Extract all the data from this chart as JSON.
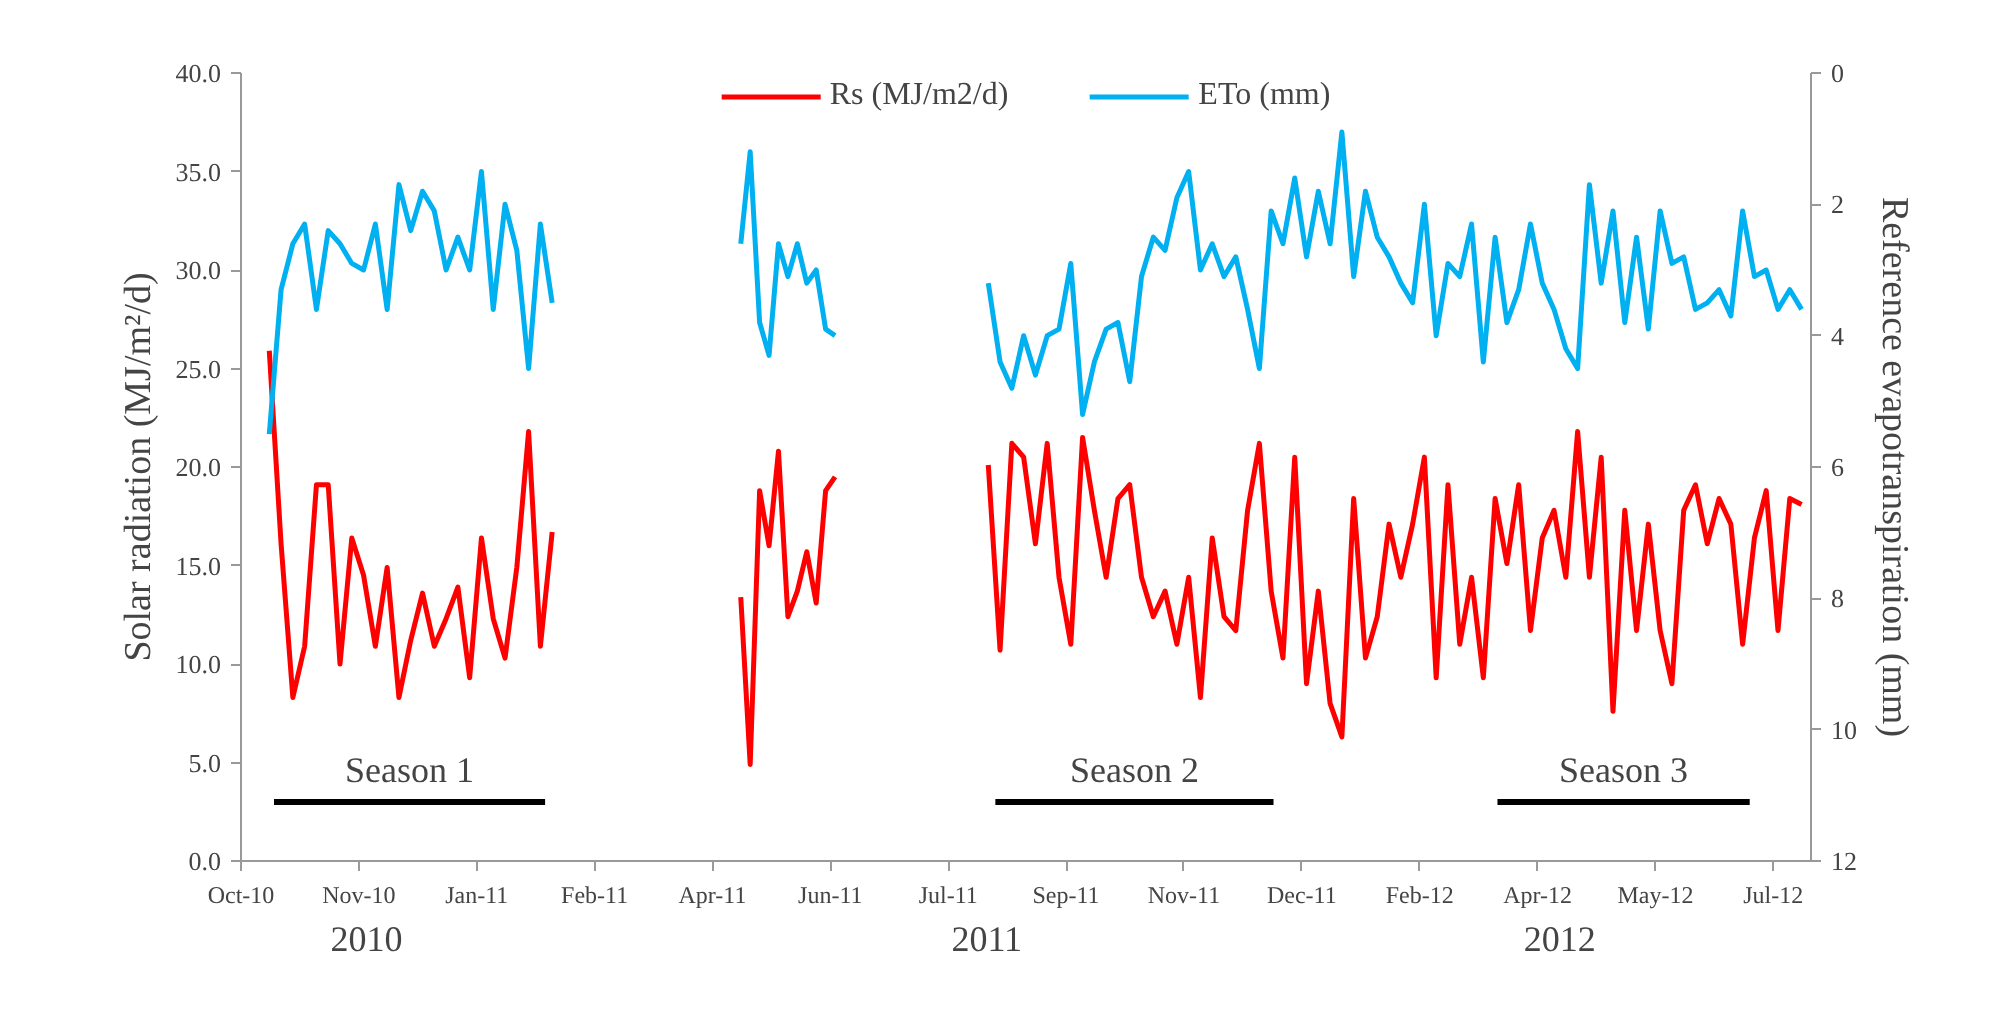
{
  "chart_data": {
    "type": "line",
    "ylabel": "Solar radiation (MJ/m²/d)",
    "y2label": "Reference evapotranspiration (mm)",
    "x": [
      "2010-10-13",
      "2010-10-18",
      "2010-10-23",
      "2010-10-28",
      "2010-11-02",
      "2010-11-07",
      "2010-11-12",
      "2010-11-17",
      "2010-11-22",
      "2010-11-27",
      "2010-12-02",
      "2010-12-07",
      "2010-12-12",
      "2010-12-17",
      "2010-12-22",
      "2010-12-27",
      "2011-01-01",
      "2011-01-06",
      "2011-01-11",
      "2011-01-16",
      "2011-01-21",
      "2011-01-26",
      "2011-01-31",
      "2011-02-05",
      "2011-02-10",
      "2011-03-15",
      "2011-05-01",
      "2011-05-05",
      "2011-05-09",
      "2011-05-13",
      "2011-05-17",
      "2011-05-21",
      "2011-05-25",
      "2011-05-29",
      "2011-06-02",
      "2011-06-06",
      "2011-06-10",
      "2011-07-01",
      "2011-08-14",
      "2011-08-19",
      "2011-08-24",
      "2011-08-29",
      "2011-09-03",
      "2011-09-08",
      "2011-09-13",
      "2011-09-18",
      "2011-09-23",
      "2011-09-28",
      "2011-10-03",
      "2011-10-08",
      "2011-10-13",
      "2011-10-18",
      "2011-10-23",
      "2011-10-28",
      "2011-11-02",
      "2011-11-07",
      "2011-11-12",
      "2011-11-17",
      "2011-11-22",
      "2011-11-27",
      "2011-12-02",
      "2011-12-07",
      "2011-12-12",
      "2011-12-17",
      "2011-12-22",
      "2011-12-27",
      "2012-01-01",
      "2012-01-06",
      "2012-01-11",
      "2012-01-16",
      "2012-01-21",
      "2012-01-26",
      "2012-01-31",
      "2012-02-05",
      "2012-02-10",
      "2012-02-15",
      "2012-02-20",
      "2012-02-25",
      "2012-03-01",
      "2012-03-06",
      "2012-03-11",
      "2012-03-16",
      "2012-03-21",
      "2012-03-26",
      "2012-03-31",
      "2012-04-05",
      "2012-04-10",
      "2012-04-15",
      "2012-04-20",
      "2012-04-25",
      "2012-04-30",
      "2012-05-05",
      "2012-05-10",
      "2012-05-15",
      "2012-05-20",
      "2012-05-25",
      "2012-05-30",
      "2012-06-04",
      "2012-06-09",
      "2012-06-14",
      "2012-06-19",
      "2012-06-24",
      "2012-06-29",
      "2012-07-04",
      "2012-07-09",
      "2012-07-14",
      "2012-07-19",
      "2012-07-24"
    ],
    "series": [
      {
        "name": "Rs (MJ/m2/d)",
        "color": "#ff0000",
        "values": [
          25.9,
          16.1,
          8.3,
          10.9,
          19.1,
          19.1,
          10.0,
          16.4,
          14.5,
          10.9,
          14.9,
          8.3,
          11.2,
          13.6,
          10.9,
          12.3,
          13.9,
          9.3,
          16.4,
          12.3,
          10.3,
          14.9,
          21.8,
          10.9,
          16.7,
          null,
          13.4,
          4.9,
          18.8,
          16.0,
          20.8,
          12.4,
          13.7,
          15.7,
          13.1,
          18.8,
          19.5,
          null,
          20.1,
          10.7,
          21.2,
          20.5,
          16.1,
          21.2,
          14.4,
          11.0,
          21.5,
          17.8,
          14.4,
          18.4,
          19.1,
          14.4,
          12.4,
          13.7,
          11.0,
          14.4,
          8.3,
          16.4,
          12.4,
          11.7,
          17.8,
          21.2,
          13.7,
          10.3,
          20.5,
          9.0,
          13.7,
          8.0,
          6.3,
          18.4,
          10.3,
          12.4,
          17.1,
          14.4,
          17.1,
          20.5,
          9.3,
          19.1,
          11.0,
          14.4,
          9.3,
          18.4,
          15.1,
          19.1,
          11.7,
          16.4,
          17.8,
          14.4,
          21.8,
          14.4,
          20.5,
          7.6,
          17.8,
          11.7,
          17.1,
          11.7,
          9.0,
          17.8,
          19.1,
          16.1,
          18.4,
          17.1,
          11.0,
          16.4,
          18.8,
          11.7,
          18.4,
          18.1
        ]
      },
      {
        "name": "ETo (mm)",
        "color": "#00b0f0",
        "axis": "y2",
        "values": [
          5.5,
          3.3,
          2.6,
          2.3,
          3.6,
          2.4,
          2.6,
          2.9,
          3.0,
          2.3,
          3.6,
          1.7,
          2.4,
          1.8,
          2.1,
          3.0,
          2.5,
          3.0,
          1.5,
          3.6,
          2.0,
          2.7,
          4.5,
          2.3,
          3.5,
          null,
          2.6,
          1.2,
          3.8,
          4.3,
          2.6,
          3.1,
          2.6,
          3.2,
          3.0,
          3.9,
          4.0,
          null,
          3.2,
          4.4,
          4.8,
          4.0,
          4.6,
          4.0,
          3.9,
          2.9,
          5.2,
          4.4,
          3.9,
          3.8,
          4.7,
          3.1,
          2.5,
          2.7,
          1.9,
          1.5,
          3.0,
          2.6,
          3.1,
          2.8,
          3.6,
          4.5,
          2.1,
          2.6,
          1.6,
          2.8,
          1.8,
          2.6,
          0.9,
          3.1,
          1.8,
          2.5,
          2.8,
          3.2,
          3.5,
          2.0,
          4.0,
          2.9,
          3.1,
          2.3,
          4.4,
          2.5,
          3.8,
          3.3,
          2.3,
          3.2,
          3.6,
          4.2,
          4.5,
          1.7,
          3.2,
          2.1,
          3.8,
          2.5,
          3.9,
          2.1,
          2.9,
          2.8,
          3.6,
          3.5,
          3.3,
          3.7,
          2.1,
          3.1,
          3.0,
          3.6,
          3.3,
          3.6
        ]
      },
      {
        "color": "#000000",
        "x": [
          "2010-10-15",
          "2011-02-07"
        ],
        "values": [
          3.0,
          3.0
        ]
      },
      {
        "color": "#000000",
        "x": [
          "2011-08-17",
          "2011-12-13"
        ],
        "values": [
          3.0,
          3.0
        ]
      },
      {
        "color": "#000000",
        "x": [
          "2012-03-17",
          "2012-07-02"
        ],
        "values": [
          3.0,
          3.0
        ]
      }
    ],
    "xlim": [
      "2010-10-01",
      "2012-07-28"
    ],
    "xticks": [
      {
        "value": "2010-10-01",
        "label": "Oct-10"
      },
      {
        "value": "2010-11-20",
        "label": "Nov-10"
      },
      {
        "value": "2011-01-09",
        "label": "Jan-11"
      },
      {
        "value": "2011-02-28",
        "label": "Feb-11"
      },
      {
        "value": "2011-04-19",
        "label": "Apr-11"
      },
      {
        "value": "2011-06-08",
        "label": "Jun-11"
      },
      {
        "value": "2011-07-28",
        "label": "Jul-11"
      },
      {
        "value": "2011-09-16",
        "label": "Sep-11"
      },
      {
        "value": "2011-11-05",
        "label": "Nov-11"
      },
      {
        "value": "2011-12-25",
        "label": "Dec-11"
      },
      {
        "value": "2012-02-13",
        "label": "Feb-12"
      },
      {
        "value": "2012-04-03",
        "label": "Apr-12"
      },
      {
        "value": "2012-05-23",
        "label": "May-12"
      },
      {
        "value": "2012-07-12",
        "label": "Jul-12"
      }
    ],
    "ylim": [
      0,
      40
    ],
    "yticks": [
      {
        "value": 0,
        "label": "0.0"
      },
      {
        "value": 5,
        "label": "5.0"
      },
      {
        "value": 10,
        "label": "10.0"
      },
      {
        "value": 15,
        "label": "15.0"
      },
      {
        "value": 20,
        "label": "20.0"
      },
      {
        "value": 25,
        "label": "25.0"
      },
      {
        "value": 30,
        "label": "30.0"
      },
      {
        "value": 35,
        "label": "35.0"
      },
      {
        "value": 40,
        "label": "40.0"
      }
    ],
    "y2lim": [
      12,
      0
    ],
    "y2ticks": [
      0,
      2,
      4,
      6,
      8,
      10,
      12
    ],
    "annotations": [
      "Season 1",
      "Season 2",
      "Season 3",
      "2010",
      "2011",
      "2012"
    ],
    "legend": "top",
    "grid": false,
    "line_style": "solid"
  }
}
